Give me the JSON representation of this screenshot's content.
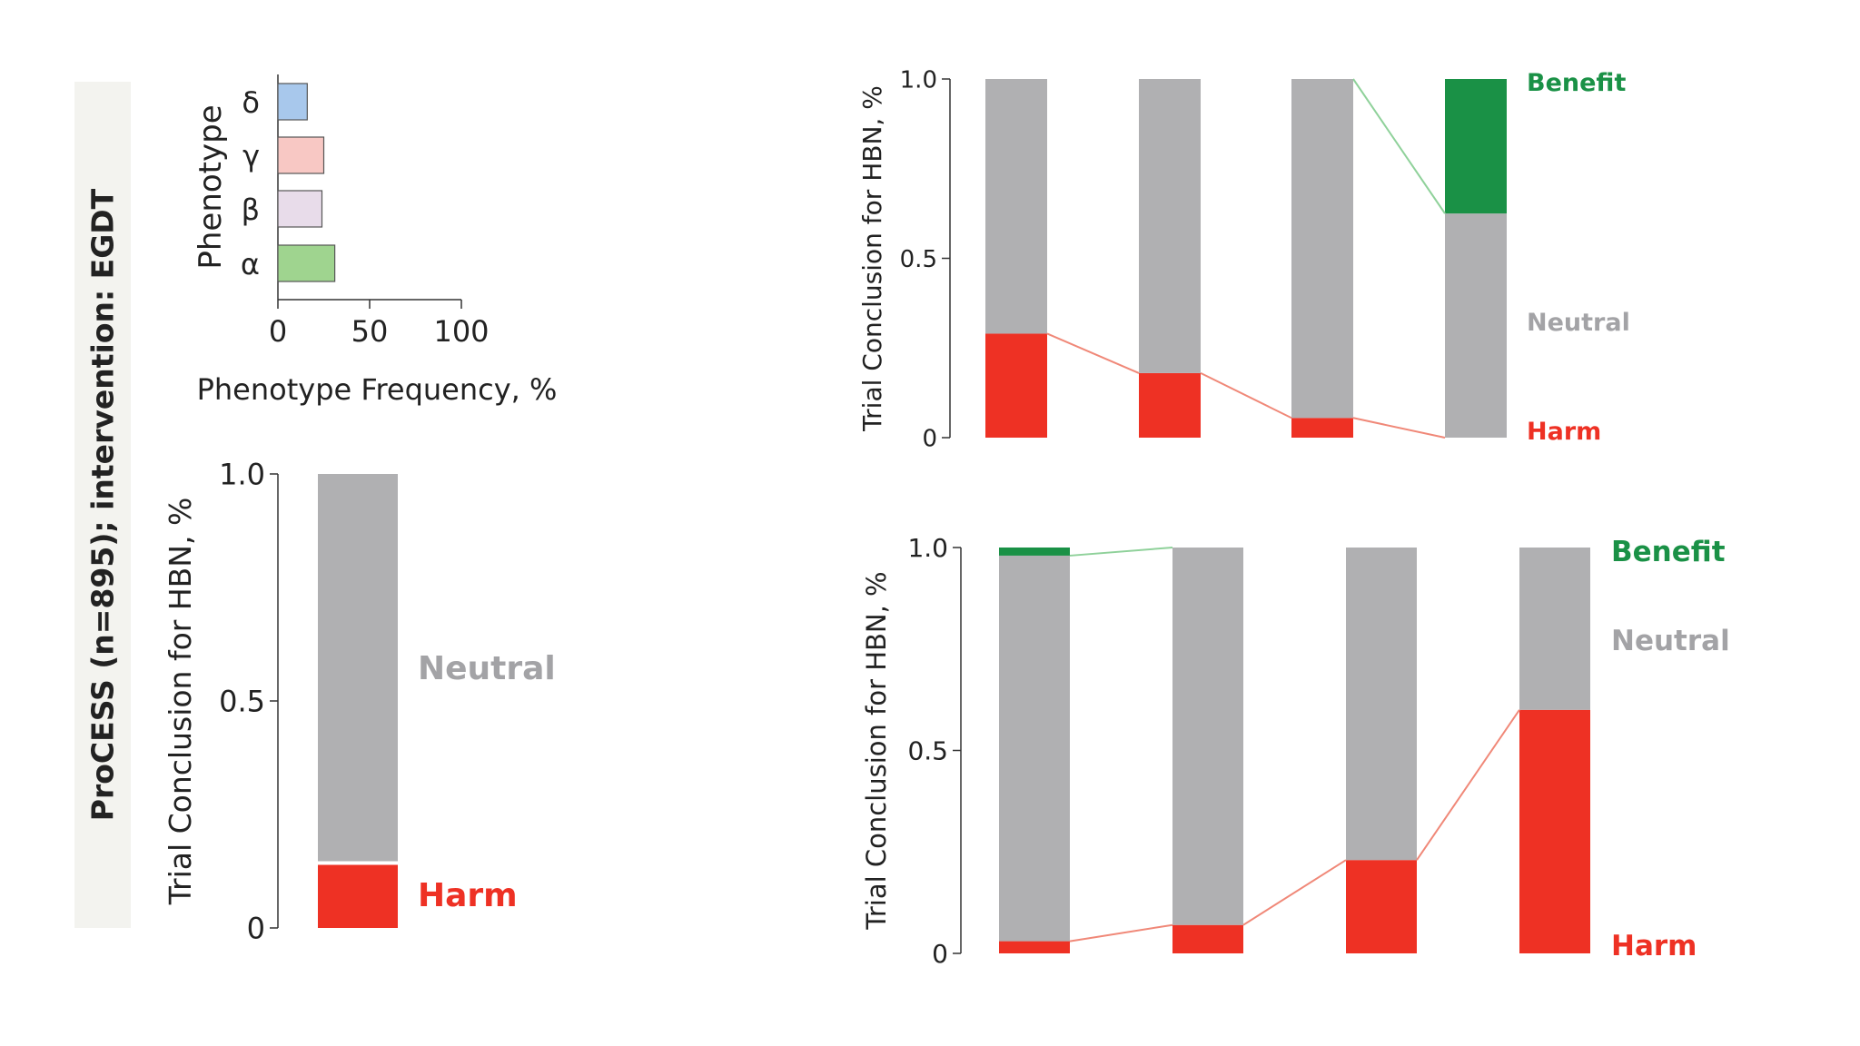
{
  "side_title": "ProCESS (n=895); intervention: EGDT",
  "colors": {
    "harm": "#ee3124",
    "neutral": "#b0b0b2",
    "benefit": "#1a9146",
    "neutral_text": "#a3a3a6",
    "harm_line": "#f08878",
    "benefit_line": "#8fd19a"
  },
  "chart_data": [
    {
      "type": "bar",
      "orientation": "horizontal",
      "ylabel": "Phenotype",
      "xlabel": "Phenotype Frequency, %",
      "categories": [
        "δ",
        "γ",
        "β",
        "α"
      ],
      "values": [
        16,
        25,
        24,
        31
      ],
      "colors": [
        "#a8c8ec",
        "#f8c8c4",
        "#e8dcea",
        "#9fd48f"
      ],
      "xlim": [
        0,
        100
      ],
      "xticks": [
        "0",
        "50",
        "100"
      ]
    },
    {
      "type": "bar",
      "stacked": true,
      "ylabel": "Trial Conclusion for HBN, %",
      "yticks": [
        "0",
        "0.5",
        "1.0"
      ],
      "ylim": [
        0,
        1
      ],
      "series": [
        {
          "name": "Harm",
          "values": [
            0.14
          ]
        },
        {
          "name": "Neutral",
          "values": [
            0.86
          ]
        }
      ]
    },
    {
      "type": "bar",
      "stacked": true,
      "ylabel": "Trial Conclusion for HBN, %",
      "yticks": [
        "0",
        "0.5",
        "1.0"
      ],
      "ylim": [
        0,
        1
      ],
      "series": [
        {
          "name": "Harm",
          "values": [
            0.29,
            0.18,
            0.055,
            0
          ]
        },
        {
          "name": "Neutral",
          "values": [
            0.71,
            0.82,
            0.945,
            0.625
          ]
        },
        {
          "name": "Benefit",
          "values": [
            0,
            0,
            0,
            0.375
          ]
        }
      ]
    },
    {
      "type": "bar",
      "stacked": true,
      "ylabel": "Trial Conclusion for HBN, %",
      "yticks": [
        "0",
        "0.5",
        "1.0"
      ],
      "ylim": [
        0,
        1
      ],
      "series": [
        {
          "name": "Harm",
          "values": [
            0.03,
            0.07,
            0.23,
            0.6
          ]
        },
        {
          "name": "Neutral",
          "values": [
            0.95,
            0.93,
            0.77,
            0.4
          ]
        },
        {
          "name": "Benefit",
          "values": [
            0.02,
            0,
            0,
            0
          ]
        }
      ]
    }
  ]
}
